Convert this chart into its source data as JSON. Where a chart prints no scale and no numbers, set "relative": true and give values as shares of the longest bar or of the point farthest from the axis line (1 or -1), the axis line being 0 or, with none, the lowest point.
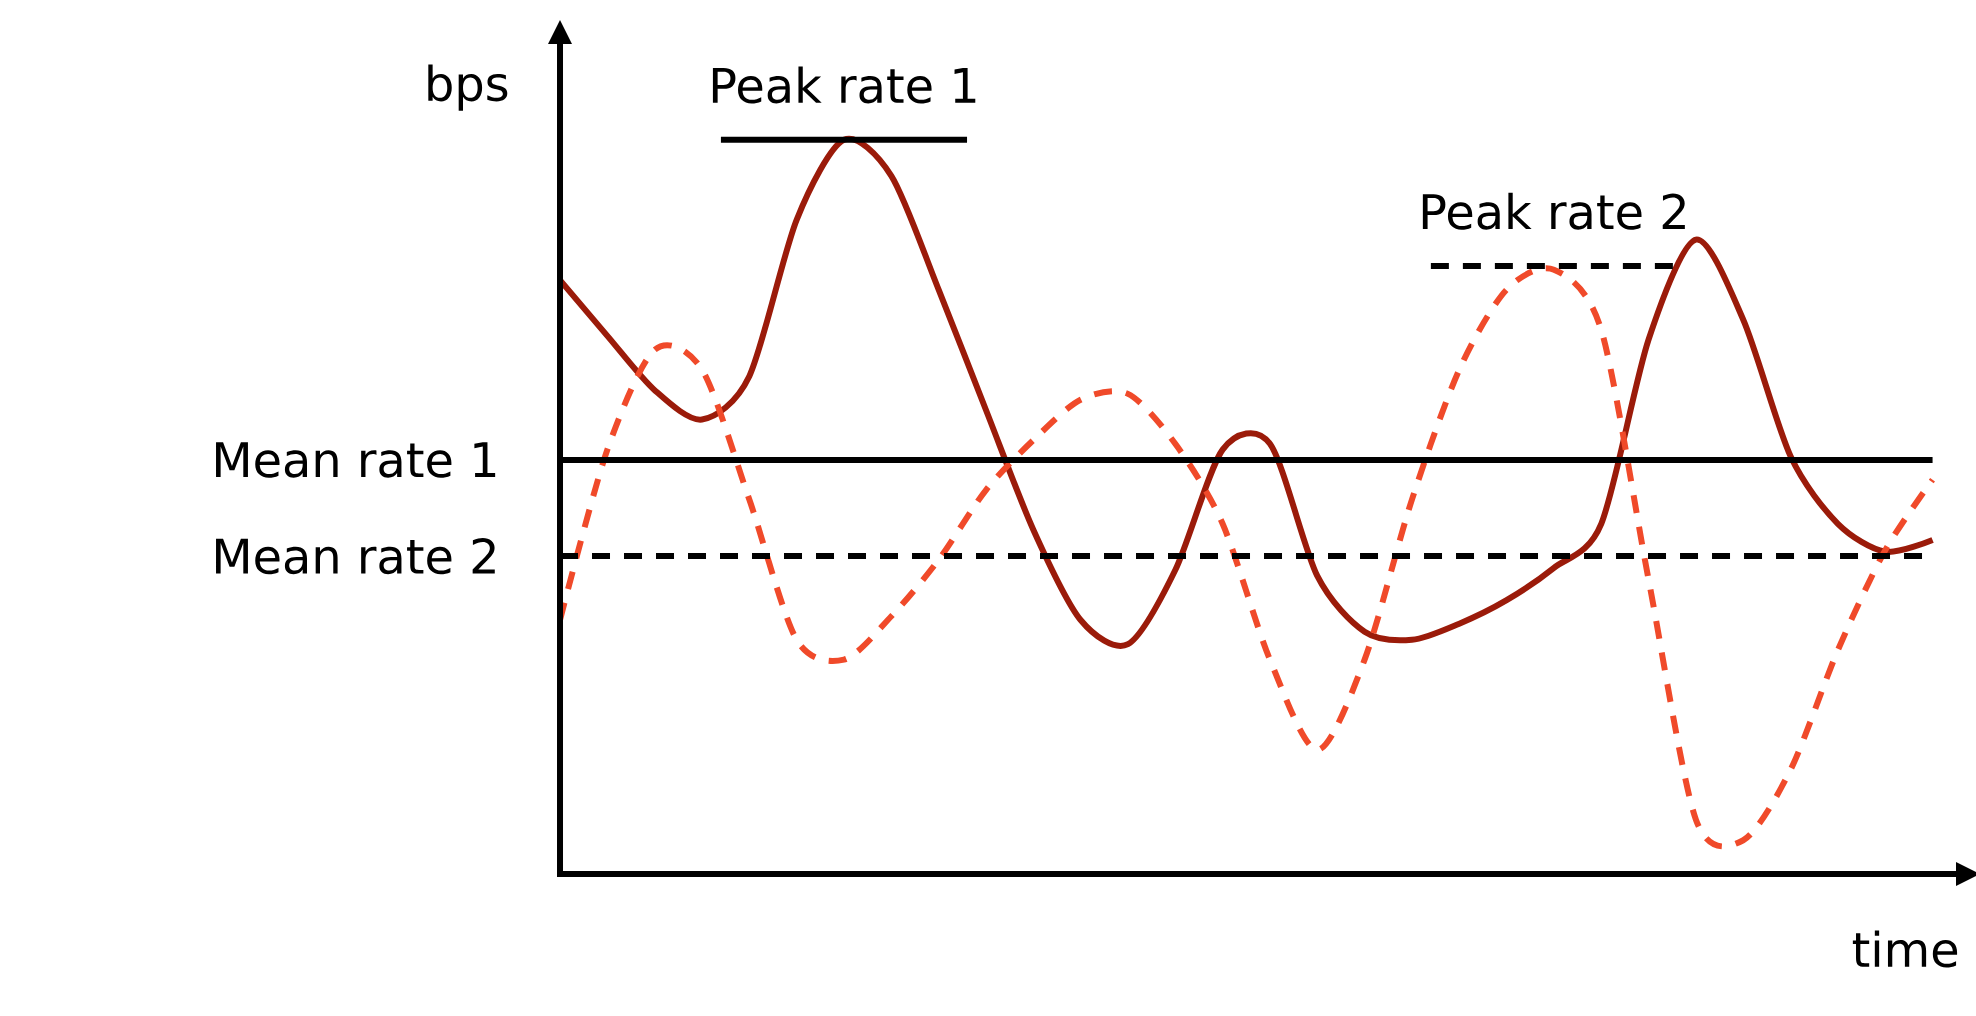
{
  "chart_data": {
    "type": "line",
    "relative": true,
    "xlabel": "time",
    "ylabel": "bps",
    "categories": [
      null,
      null,
      null,
      null,
      null,
      null,
      null,
      null,
      null,
      null,
      null,
      null,
      null,
      null,
      null,
      null,
      null,
      null,
      null,
      null,
      null,
      null,
      null,
      null,
      null,
      null,
      null,
      null,
      null,
      null
    ],
    "series": [
      {
        "color": "#9b1b0a",
        "line_style": "solid",
        "values": [
          0.809,
          0.733,
          0.659,
          0.619,
          0.678,
          0.891,
          1.0,
          0.951,
          0.796,
          0.632,
          0.469,
          0.346,
          0.313,
          0.414,
          0.578,
          0.586,
          0.406,
          0.33,
          0.319,
          0.341,
          0.373,
          0.417,
          0.477,
          0.728,
          0.864,
          0.755,
          0.569,
          0.477,
          0.439,
          0.455
        ]
      },
      {
        "color": "#f04a2a",
        "line_style": "dashed",
        "values": [
          0.346,
          0.578,
          0.714,
          0.687,
          0.51,
          0.319,
          0.292,
          0.351,
          0.428,
          0.523,
          0.591,
          0.646,
          0.654,
          0.586,
          0.477,
          0.292,
          0.169,
          0.292,
          0.51,
          0.687,
          0.796,
          0.823,
          0.741,
          0.401,
          0.074,
          0.046,
          0.142,
          0.305,
          0.441,
          0.537
        ]
      }
    ],
    "ref_lines": [
      {
        "axis": "y",
        "value": 0.564,
        "label": "Mean rate 1",
        "color": "#000000",
        "line_style": "solid"
      },
      {
        "axis": "y",
        "value": 0.433,
        "label": "Mean rate 2",
        "color": "#000000",
        "line_style": "dashed"
      }
    ],
    "annotations": [
      {
        "text": "Peak rate 1",
        "y": 1.0
      },
      {
        "text": "Peak rate 2",
        "y": 0.828
      }
    ]
  }
}
